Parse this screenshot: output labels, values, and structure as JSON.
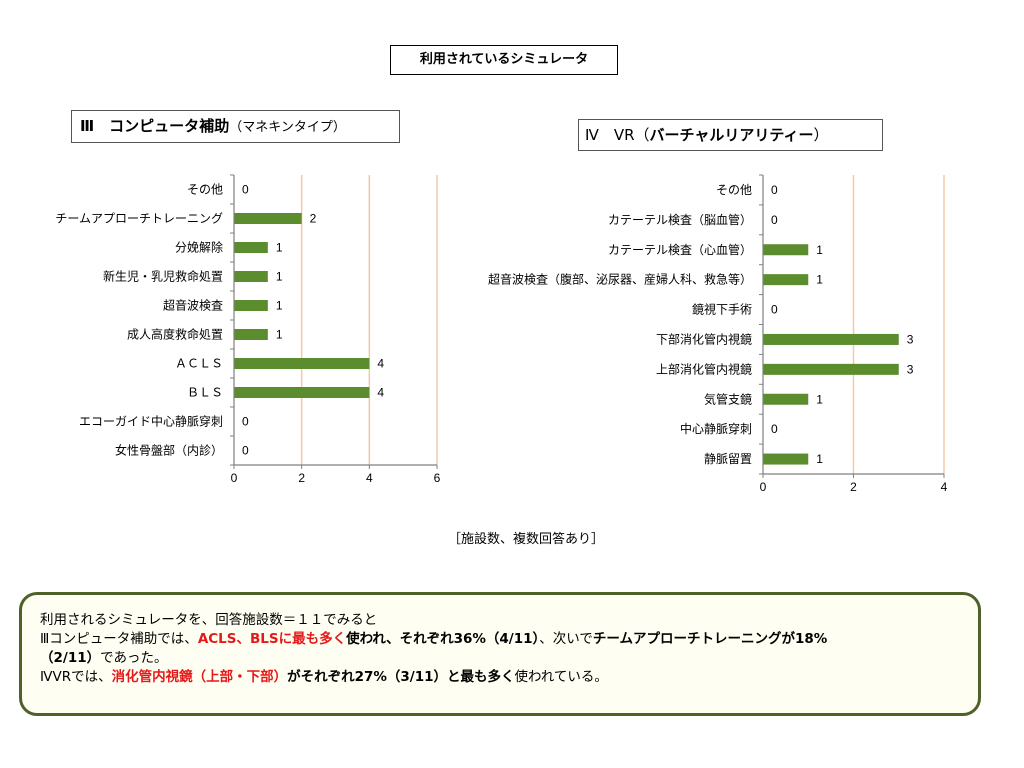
{
  "page_title": "利用されているシミュレータ",
  "chart3_title": {
    "prefix": "Ⅲ　コンピュータ",
    "main": "補助",
    "suffix": "（マネキンタイプ）"
  },
  "chart4_title": {
    "prefix": "Ⅳ　VR（",
    "main": "バーチャルリアリティー",
    "suffix": "）"
  },
  "note": "［施設数、複数回答あり］",
  "summary": {
    "line1": "利用されるシミュレータを、回答施設数＝１１でみると",
    "line2_a": "Ⅲコンピュータ補助では、",
    "line2_b": "ACLS、BLSに最も多く",
    "line2_c": "使われ、それぞれ36%（4/11）",
    "line2_d": "、次いで",
    "line2_e": "チームアプローチトレーニングが18%",
    "line3_a": "（2/11）",
    "line3_b": "であった。",
    "line4_a": "ⅣVRでは、",
    "line4_b": "消化管内視鏡（上部・下部）",
    "line4_c": "がそれぞれ27%（3/11）",
    "line4_d": "と最も多く",
    "line4_e": "使われている。"
  },
  "colors": {
    "bar": "#5b8c2e",
    "grid": "#f2c9a8",
    "axis": "#808080",
    "border": "#4e6128",
    "highlight": "#e41a1a"
  },
  "chart_data": [
    {
      "type": "bar",
      "orientation": "horizontal",
      "categories": [
        "その他",
        "チームアプローチトレーニング",
        "分娩解除",
        "新生児・乳児救命処置",
        "超音波検査",
        "成人高度救命処置",
        "ＡＣＬＳ",
        "ＢＬＳ",
        "エコーガイド中心静脈穿刺",
        "女性骨盤部（内診）"
      ],
      "values": [
        0,
        2,
        1,
        1,
        1,
        1,
        4,
        4,
        0,
        0
      ],
      "xlim": [
        0,
        6
      ],
      "xticks": [
        0,
        2,
        4,
        6
      ],
      "grid": true
    },
    {
      "type": "bar",
      "orientation": "horizontal",
      "categories": [
        "その他",
        "カテーテル検査（脳血管）",
        "カテーテル検査（心血管）",
        "超音波検査（腹部、泌尿器、産婦人科、救急等）",
        "鏡視下手術",
        "下部消化管内視鏡",
        "上部消化管内視鏡",
        "気管支鏡",
        "中心静脈穿刺",
        "静脈留置"
      ],
      "values": [
        0,
        0,
        1,
        1,
        0,
        3,
        3,
        1,
        0,
        1
      ],
      "xlim": [
        0,
        4
      ],
      "xticks": [
        0,
        2,
        4
      ],
      "grid": true
    }
  ]
}
